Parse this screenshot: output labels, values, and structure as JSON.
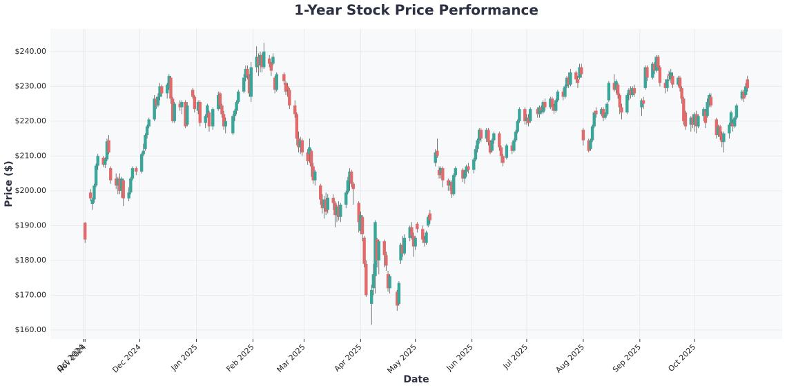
{
  "chart_data": {
    "type": "candlestick",
    "title": "1-Year Stock Price Performance",
    "x_label": "Date",
    "y_label": "Price ($)",
    "x": [
      "2024-11-01",
      "2024-11-04",
      "2024-11-05",
      "2024-11-06",
      "2024-11-07",
      "2024-11-08",
      "2024-11-11",
      "2024-11-12",
      "2024-11-13",
      "2024-11-14",
      "2024-11-15",
      "2024-11-18",
      "2024-11-19",
      "2024-11-20",
      "2024-11-21",
      "2024-11-22",
      "2024-11-25",
      "2024-11-26",
      "2024-11-27",
      "2024-11-29",
      "2024-12-02",
      "2024-12-03",
      "2024-12-04",
      "2024-12-05",
      "2024-12-06",
      "2024-12-09",
      "2024-12-10",
      "2024-12-11",
      "2024-12-12",
      "2024-12-13",
      "2024-12-16",
      "2024-12-17",
      "2024-12-18",
      "2024-12-19",
      "2024-12-20",
      "2024-12-23",
      "2024-12-24",
      "2024-12-26",
      "2024-12-27",
      "2024-12-30",
      "2024-12-31",
      "2025-01-02",
      "2025-01-03",
      "2025-01-06",
      "2025-01-07",
      "2025-01-08",
      "2025-01-10",
      "2025-01-13",
      "2025-01-14",
      "2025-01-15",
      "2025-01-16",
      "2025-01-17",
      "2025-01-21",
      "2025-01-22",
      "2025-01-23",
      "2025-01-24",
      "2025-01-27",
      "2025-01-28",
      "2025-01-29",
      "2025-01-30",
      "2025-01-31",
      "2025-02-03",
      "2025-02-04",
      "2025-02-05",
      "2025-02-06",
      "2025-02-07",
      "2025-02-10",
      "2025-02-11",
      "2025-02-12",
      "2025-02-13",
      "2025-02-14",
      "2025-02-18",
      "2025-02-19",
      "2025-02-20",
      "2025-02-21",
      "2025-02-24",
      "2025-02-25",
      "2025-02-26",
      "2025-02-27",
      "2025-02-28",
      "2025-03-03",
      "2025-03-04",
      "2025-03-05",
      "2025-03-06",
      "2025-03-07",
      "2025-03-10",
      "2025-03-11",
      "2025-03-12",
      "2025-03-13",
      "2025-03-14",
      "2025-03-17",
      "2025-03-18",
      "2025-03-19",
      "2025-03-20",
      "2025-03-21",
      "2025-03-24",
      "2025-03-25",
      "2025-03-26",
      "2025-03-27",
      "2025-03-28",
      "2025-03-31",
      "2025-04-01",
      "2025-04-02",
      "2025-04-03",
      "2025-04-04",
      "2025-04-07",
      "2025-04-08",
      "2025-04-09",
      "2025-04-10",
      "2025-04-11",
      "2025-04-14",
      "2025-04-15",
      "2025-04-16",
      "2025-04-17",
      "2025-04-21",
      "2025-04-22",
      "2025-04-23",
      "2025-04-24",
      "2025-04-25",
      "2025-04-28",
      "2025-04-29",
      "2025-04-30",
      "2025-05-01",
      "2025-05-02",
      "2025-05-05",
      "2025-05-06",
      "2025-05-07",
      "2025-05-08",
      "2025-05-09",
      "2025-05-12",
      "2025-05-13",
      "2025-05-14",
      "2025-05-15",
      "2025-05-16",
      "2025-05-19",
      "2025-05-20",
      "2025-05-21",
      "2025-05-22",
      "2025-05-23",
      "2025-05-27",
      "2025-05-28",
      "2025-05-29",
      "2025-05-30",
      "2025-06-02",
      "2025-06-03",
      "2025-06-04",
      "2025-06-05",
      "2025-06-06",
      "2025-06-09",
      "2025-06-10",
      "2025-06-11",
      "2025-06-12",
      "2025-06-13",
      "2025-06-16",
      "2025-06-17",
      "2025-06-18",
      "2025-06-20",
      "2025-06-23",
      "2025-06-24",
      "2025-06-25",
      "2025-06-26",
      "2025-06-27",
      "2025-06-30",
      "2025-07-01",
      "2025-07-02",
      "2025-07-03",
      "2025-07-07",
      "2025-07-08",
      "2025-07-09",
      "2025-07-10",
      "2025-07-11",
      "2025-07-14",
      "2025-07-15",
      "2025-07-16",
      "2025-07-17",
      "2025-07-18",
      "2025-07-21",
      "2025-07-22",
      "2025-07-23",
      "2025-07-24",
      "2025-07-25",
      "2025-07-28",
      "2025-07-29",
      "2025-07-30",
      "2025-07-31",
      "2025-08-01",
      "2025-08-04",
      "2025-08-05",
      "2025-08-06",
      "2025-08-07",
      "2025-08-08",
      "2025-08-11",
      "2025-08-12",
      "2025-08-13",
      "2025-08-14",
      "2025-08-15",
      "2025-08-18",
      "2025-08-19",
      "2025-08-20",
      "2025-08-21",
      "2025-08-22",
      "2025-08-25",
      "2025-08-26",
      "2025-08-27",
      "2025-08-28",
      "2025-08-29",
      "2025-09-02",
      "2025-09-03",
      "2025-09-04",
      "2025-09-05",
      "2025-09-08",
      "2025-09-09",
      "2025-09-10",
      "2025-09-11",
      "2025-09-12",
      "2025-09-15",
      "2025-09-16",
      "2025-09-17",
      "2025-09-18",
      "2025-09-19",
      "2025-09-22",
      "2025-09-23",
      "2025-09-24",
      "2025-09-25",
      "2025-09-26",
      "2025-09-29",
      "2025-09-30",
      "2025-10-01",
      "2025-10-02",
      "2025-10-03",
      "2025-10-06",
      "2025-10-07",
      "2025-10-08",
      "2025-10-09",
      "2025-10-10",
      "2025-10-13",
      "2025-10-14",
      "2025-10-15",
      "2025-10-16",
      "2025-10-17",
      "2025-10-20",
      "2025-10-21",
      "2025-10-22",
      "2025-10-23",
      "2025-10-24",
      "2025-10-27",
      "2025-10-28",
      "2025-10-29",
      "2025-10-30"
    ],
    "open": [
      190.8,
      199.5,
      196.2,
      197.5,
      201.5,
      207.2,
      209.5,
      207.5,
      209.0,
      214.5,
      206.5,
      203.5,
      201.5,
      203.5,
      200.0,
      203.0,
      197.8,
      199.5,
      203.5,
      206.5,
      205.5,
      210.5,
      212.0,
      216.0,
      218.5,
      220.5,
      226.5,
      224.5,
      227.0,
      230.0,
      228.0,
      229.5,
      232.5,
      226.5,
      220.0,
      225.0,
      224.0,
      225.5,
      219.0,
      229.0,
      227.0,
      223.0,
      225.5,
      219.5,
      221.5,
      222.5,
      218.5,
      223.5,
      228.0,
      224.5,
      222.0,
      218.5,
      216.5,
      221.5,
      223.0,
      225.5,
      228.5,
      232.5,
      235.0,
      233.0,
      227.0,
      235.5,
      238.5,
      236.0,
      239.0,
      235.5,
      238.0,
      236.5,
      236.5,
      232.5,
      229.0,
      233.5,
      231.0,
      230.0,
      229.0,
      224.5,
      222.0,
      215.0,
      212.5,
      214.5,
      211.0,
      210.5,
      211.5,
      207.0,
      203.0,
      201.5,
      197.5,
      195.0,
      197.5,
      194.5,
      198.0,
      196.5,
      193.0,
      195.5,
      192.5,
      196.0,
      199.5,
      203.0,
      205.5,
      202.0,
      196.5,
      188.5,
      192.5,
      186.5,
      179.0,
      167.5,
      172.0,
      175.5,
      186.0,
      180.0,
      185.5,
      181.5,
      176.0,
      172.0,
      171.0,
      167.5,
      180.0,
      184.5,
      182.0,
      186.5,
      189.5,
      187.0,
      184.0,
      190.5,
      189.0,
      186.0,
      185.0,
      190.0,
      193.5,
      208.0,
      211.5,
      206.0,
      205.0,
      206.5,
      203.0,
      201.5,
      202.5,
      199.0,
      204.5,
      206.0,
      203.5,
      205.5,
      207.0,
      206.0,
      209.0,
      212.0,
      214.5,
      217.5,
      215.0,
      217.5,
      214.0,
      211.5,
      214.5,
      216.5,
      212.5,
      210.0,
      209.5,
      213.0,
      211.5,
      214.5,
      217.0,
      220.0,
      223.5,
      220.0,
      221.0,
      220.0,
      223.5,
      222.0,
      224.0,
      222.5,
      225.5,
      224.0,
      226.5,
      224.0,
      223.0,
      226.0,
      228.5,
      227.0,
      230.0,
      232.5,
      230.5,
      234.0,
      232.0,
      232.5,
      235.5,
      217.5,
      214.5,
      212.0,
      214.5,
      218.5,
      223.0,
      222.0,
      223.5,
      221.0,
      222.0,
      226.0,
      231.0,
      229.0,
      230.5,
      227.5,
      224.0,
      222.5,
      227.5,
      229.0,
      227.5,
      229.5,
      224.0,
      226.0,
      229.5,
      235.5,
      232.5,
      236.5,
      234.5,
      238.5,
      235.5,
      231.0,
      229.5,
      233.5,
      232.0,
      233.0,
      230.5,
      232.5,
      229.5,
      226.5,
      222.5,
      219.0,
      221.0,
      219.0,
      222.0,
      218.5,
      221.5,
      223.0,
      221.5,
      225.5,
      227.0,
      220.5,
      216.0,
      218.5,
      216.0,
      214.0,
      216.5,
      219.0,
      219.5,
      218.5,
      221.0,
      226.5,
      228.5,
      227.5,
      232.0
    ],
    "high": [
      191,
      200.5,
      198,
      202,
      207.8,
      210.6,
      210,
      209.6,
      215,
      216,
      207,
      205,
      204,
      205,
      204,
      203.5,
      201,
      204,
      207,
      207,
      211,
      213.5,
      216.5,
      219,
      221,
      227.5,
      227,
      228,
      231,
      230.5,
      231,
      233.5,
      233,
      227,
      225.5,
      226,
      226,
      226,
      225.5,
      229.5,
      227.5,
      226,
      226,
      222,
      225,
      223,
      224,
      228.5,
      228.5,
      225,
      223,
      221,
      222,
      223.5,
      226,
      229,
      233.5,
      236,
      236,
      233.5,
      237,
      241.5,
      239.5,
      240,
      239.5,
      242.5,
      239,
      237,
      239.5,
      233,
      234,
      234,
      231.5,
      231,
      229.5,
      226,
      222.5,
      217,
      215.5,
      215,
      212,
      215,
      212,
      208,
      206,
      202,
      199,
      198.5,
      199.5,
      199,
      199,
      197,
      196,
      197,
      196.5,
      200,
      204,
      206.5,
      206,
      202.5,
      197,
      194,
      193,
      187,
      180,
      173,
      179,
      191.5,
      186.5,
      186,
      186,
      182.5,
      177,
      176,
      171.5,
      174,
      185,
      187,
      187.5,
      190,
      191,
      188,
      187,
      191,
      190,
      187,
      188.5,
      193,
      194.5,
      212,
      215,
      207,
      207,
      207,
      203.5,
      203,
      203,
      205,
      207,
      206.5,
      206,
      207.5,
      208,
      209.5,
      213,
      215,
      218,
      218,
      218,
      218,
      214.5,
      215,
      217,
      217,
      213,
      210.5,
      213.5,
      214,
      215,
      217.5,
      220.5,
      224,
      224,
      222,
      222,
      224,
      224,
      224.5,
      224.5,
      226,
      226.5,
      227,
      227,
      225,
      226.5,
      229,
      229.5,
      230.5,
      233,
      234,
      235,
      234.5,
      233,
      236.5,
      236.5,
      218,
      215,
      215,
      219,
      223,
      224,
      224,
      224,
      222.5,
      225.5,
      231.5,
      233.5,
      232,
      231,
      228,
      225,
      228,
      229.5,
      230,
      230,
      230.5,
      226.5,
      227,
      236,
      236,
      237,
      237,
      239,
      239,
      236,
      232,
      233,
      234.5,
      235,
      234,
      233,
      233,
      230,
      227,
      223,
      221.5,
      222,
      222.5,
      223,
      222,
      224,
      223.5,
      226.5,
      228,
      228,
      221,
      219,
      219,
      217,
      217,
      219.5,
      223,
      220.5,
      221.5,
      225,
      229,
      229,
      231,
      233
    ],
    "low": [
      185,
      197,
      194.5,
      196.5,
      201,
      206,
      206.8,
      206.5,
      208.5,
      210.5,
      202,
      200.5,
      199,
      199,
      198,
      195.6,
      197,
      199,
      203,
      204.5,
      205,
      210,
      211.5,
      215,
      218,
      220,
      223.5,
      224,
      226,
      227,
      226.5,
      229,
      225,
      219.5,
      219.5,
      223,
      222,
      218,
      218.5,
      226.5,
      222.5,
      222,
      218.5,
      218,
      221,
      217,
      217.5,
      223,
      223.5,
      221,
      217.5,
      216.5,
      216,
      220,
      222,
      225,
      228,
      231.5,
      232,
      227,
      225.5,
      234,
      233,
      234,
      234,
      235,
      235.5,
      233,
      236,
      228,
      228.5,
      230.5,
      227.5,
      227,
      223.5,
      221,
      213,
      211,
      210.5,
      210,
      207.5,
      208,
      204,
      202,
      201.5,
      196,
      193.5,
      192,
      193,
      193.5,
      194.5,
      189.5,
      191,
      191.5,
      191,
      195,
      199,
      200,
      201,
      196,
      188,
      187.5,
      185.5,
      178,
      169.5,
      161.5,
      170,
      170.5,
      178,
      176,
      178,
      177,
      171,
      170.5,
      165.5,
      167,
      179,
      181,
      181.5,
      185.5,
      186,
      181,
      183,
      188,
      185,
      184,
      184.5,
      189.5,
      190.5,
      207,
      209.5,
      203.5,
      203.5,
      201,
      200,
      200,
      198,
      198.5,
      204,
      202.5,
      202,
      204,
      205,
      205,
      208.5,
      211,
      213.5,
      214,
      214,
      213,
      210.5,
      211,
      213.5,
      211.5,
      208,
      207,
      209,
      210.5,
      211,
      214,
      216.5,
      219.5,
      219,
      219,
      218.5,
      219.5,
      221,
      221,
      222,
      222,
      223,
      223.5,
      223,
      222,
      222.5,
      225.5,
      226,
      226.5,
      229.5,
      229.5,
      230,
      231,
      229.5,
      232,
      232.5,
      213,
      211,
      211.5,
      214,
      218,
      221,
      221.5,
      220,
      220.5,
      221.5,
      225.5,
      228.5,
      228,
      226.5,
      222,
      220.5,
      222,
      226,
      226.5,
      227,
      227,
      221.5,
      223.5,
      229,
      231.5,
      232,
      233.5,
      234,
      234.5,
      230,
      228,
      228.5,
      231.5,
      231,
      229.5,
      230,
      228.5,
      225,
      219,
      217.5,
      217,
      218,
      217,
      216.5,
      218,
      220,
      218,
      221,
      224,
      224,
      215,
      215.5,
      214.5,
      212.5,
      211,
      215,
      218.5,
      217,
      218,
      220.5,
      226,
      225.5,
      227,
      228.5
    ],
    "close": [
      186.0,
      197.8,
      197.5,
      201.5,
      207.2,
      210.0,
      207.5,
      209.0,
      214.2,
      211.0,
      203.0,
      201.5,
      203.5,
      200.0,
      203.5,
      197.8,
      199.5,
      203.5,
      206.5,
      205.5,
      210.5,
      211.5,
      216.0,
      218.5,
      220.5,
      226.5,
      224.5,
      227.0,
      230.0,
      228.0,
      230.5,
      233.0,
      226.5,
      220.0,
      225.0,
      224.0,
      225.5,
      218.5,
      224.5,
      227.0,
      223.5,
      225.5,
      219.5,
      221.5,
      224.5,
      218.5,
      223.5,
      227.5,
      224.5,
      222.0,
      218.5,
      220.0,
      221.5,
      223.0,
      225.5,
      228.5,
      232.5,
      235.0,
      233.0,
      228.0,
      235.5,
      238.5,
      236.0,
      239.0,
      235.5,
      240.0,
      236.5,
      234.5,
      238.5,
      229.0,
      233.5,
      231.5,
      228.5,
      229.0,
      224.5,
      222.0,
      215.0,
      212.5,
      214.5,
      211.0,
      208.5,
      212.5,
      207.0,
      203.0,
      205.5,
      197.5,
      195.0,
      197.5,
      194.0,
      198.0,
      196.5,
      193.0,
      195.5,
      192.5,
      196.0,
      199.5,
      203.0,
      205.5,
      202.0,
      200.5,
      191.0,
      193.0,
      187.5,
      179.0,
      170.0,
      171.5,
      176.0,
      191.0,
      180.0,
      185.5,
      181.5,
      178.5,
      172.0,
      175.5,
      167.0,
      173.5,
      184.5,
      182.0,
      186.5,
      189.5,
      187.0,
      184.0,
      186.5,
      189.0,
      186.0,
      185.0,
      188.0,
      192.5,
      191.5,
      211.0,
      210.0,
      204.5,
      206.5,
      203.0,
      201.5,
      202.5,
      199.0,
      204.5,
      206.5,
      203.5,
      205.5,
      207.0,
      206.0,
      209.0,
      212.0,
      214.5,
      217.5,
      215.0,
      217.5,
      214.0,
      211.0,
      214.5,
      216.5,
      212.5,
      210.0,
      208.0,
      213.0,
      211.5,
      214.5,
      217.0,
      220.0,
      223.5,
      220.0,
      221.0,
      219.5,
      223.5,
      222.0,
      224.0,
      223.0,
      225.5,
      224.0,
      226.5,
      224.0,
      223.0,
      226.0,
      228.5,
      227.0,
      230.0,
      232.5,
      230.5,
      234.0,
      232.0,
      231.0,
      235.5,
      233.5,
      214.5,
      211.5,
      214.5,
      218.5,
      222.5,
      222.0,
      223.5,
      221.0,
      222.0,
      225.0,
      231.0,
      229.0,
      231.5,
      227.5,
      224.0,
      222.5,
      227.5,
      229.0,
      227.5,
      229.5,
      228.0,
      226.0,
      225.0,
      235.5,
      232.5,
      236.5,
      234.5,
      238.5,
      235.5,
      231.0,
      229.5,
      232.0,
      233.0,
      234.0,
      230.5,
      232.5,
      229.5,
      226.5,
      220.0,
      218.5,
      221.0,
      219.0,
      222.0,
      218.5,
      221.5,
      223.5,
      219.5,
      225.5,
      227.5,
      224.5,
      216.0,
      218.5,
      215.5,
      214.0,
      216.5,
      219.0,
      222.5,
      218.5,
      221.0,
      224.5,
      228.5,
      226.5,
      230.0,
      229.5
    ],
    "up_color": "#3aa69a",
    "down_color": "#e36a6a",
    "wick_color": "#555555",
    "grid": true,
    "xlim": [
      "2024-10-13",
      "2025-11-18"
    ],
    "xticks": [
      {
        "value": "2024-10-31",
        "label": "Oct 2024"
      },
      {
        "value": "2024-11-01",
        "label": "Nov 2024"
      },
      {
        "value": "2024-12-01",
        "label": "Dec 2024"
      },
      {
        "value": "2025-01-01",
        "label": "Jan 2025"
      },
      {
        "value": "2025-02-01",
        "label": "Feb 2025"
      },
      {
        "value": "2025-03-01",
        "label": "Mar 2025"
      },
      {
        "value": "2025-04-01",
        "label": "Apr 2025"
      },
      {
        "value": "2025-05-01",
        "label": "May 2025"
      },
      {
        "value": "2025-06-01",
        "label": "Jun 2025"
      },
      {
        "value": "2025-07-01",
        "label": "Jul 2025"
      },
      {
        "value": "2025-08-01",
        "label": "Aug 2025"
      },
      {
        "value": "2025-09-01",
        "label": "Sep 2025"
      },
      {
        "value": "2025-10-01",
        "label": "Oct 2025"
      }
    ],
    "ylim": [
      157.4,
      246.5
    ],
    "yticks": [
      {
        "value": 160,
        "label": "$160.00"
      },
      {
        "value": 170,
        "label": "$170.00"
      },
      {
        "value": 180,
        "label": "$180.00"
      },
      {
        "value": 190,
        "label": "$190.00"
      },
      {
        "value": 200,
        "label": "$200.00"
      },
      {
        "value": 210,
        "label": "$210.00"
      },
      {
        "value": 220,
        "label": "$220.00"
      },
      {
        "value": 230,
        "label": "$230.00"
      },
      {
        "value": 240,
        "label": "$240.00"
      }
    ]
  }
}
